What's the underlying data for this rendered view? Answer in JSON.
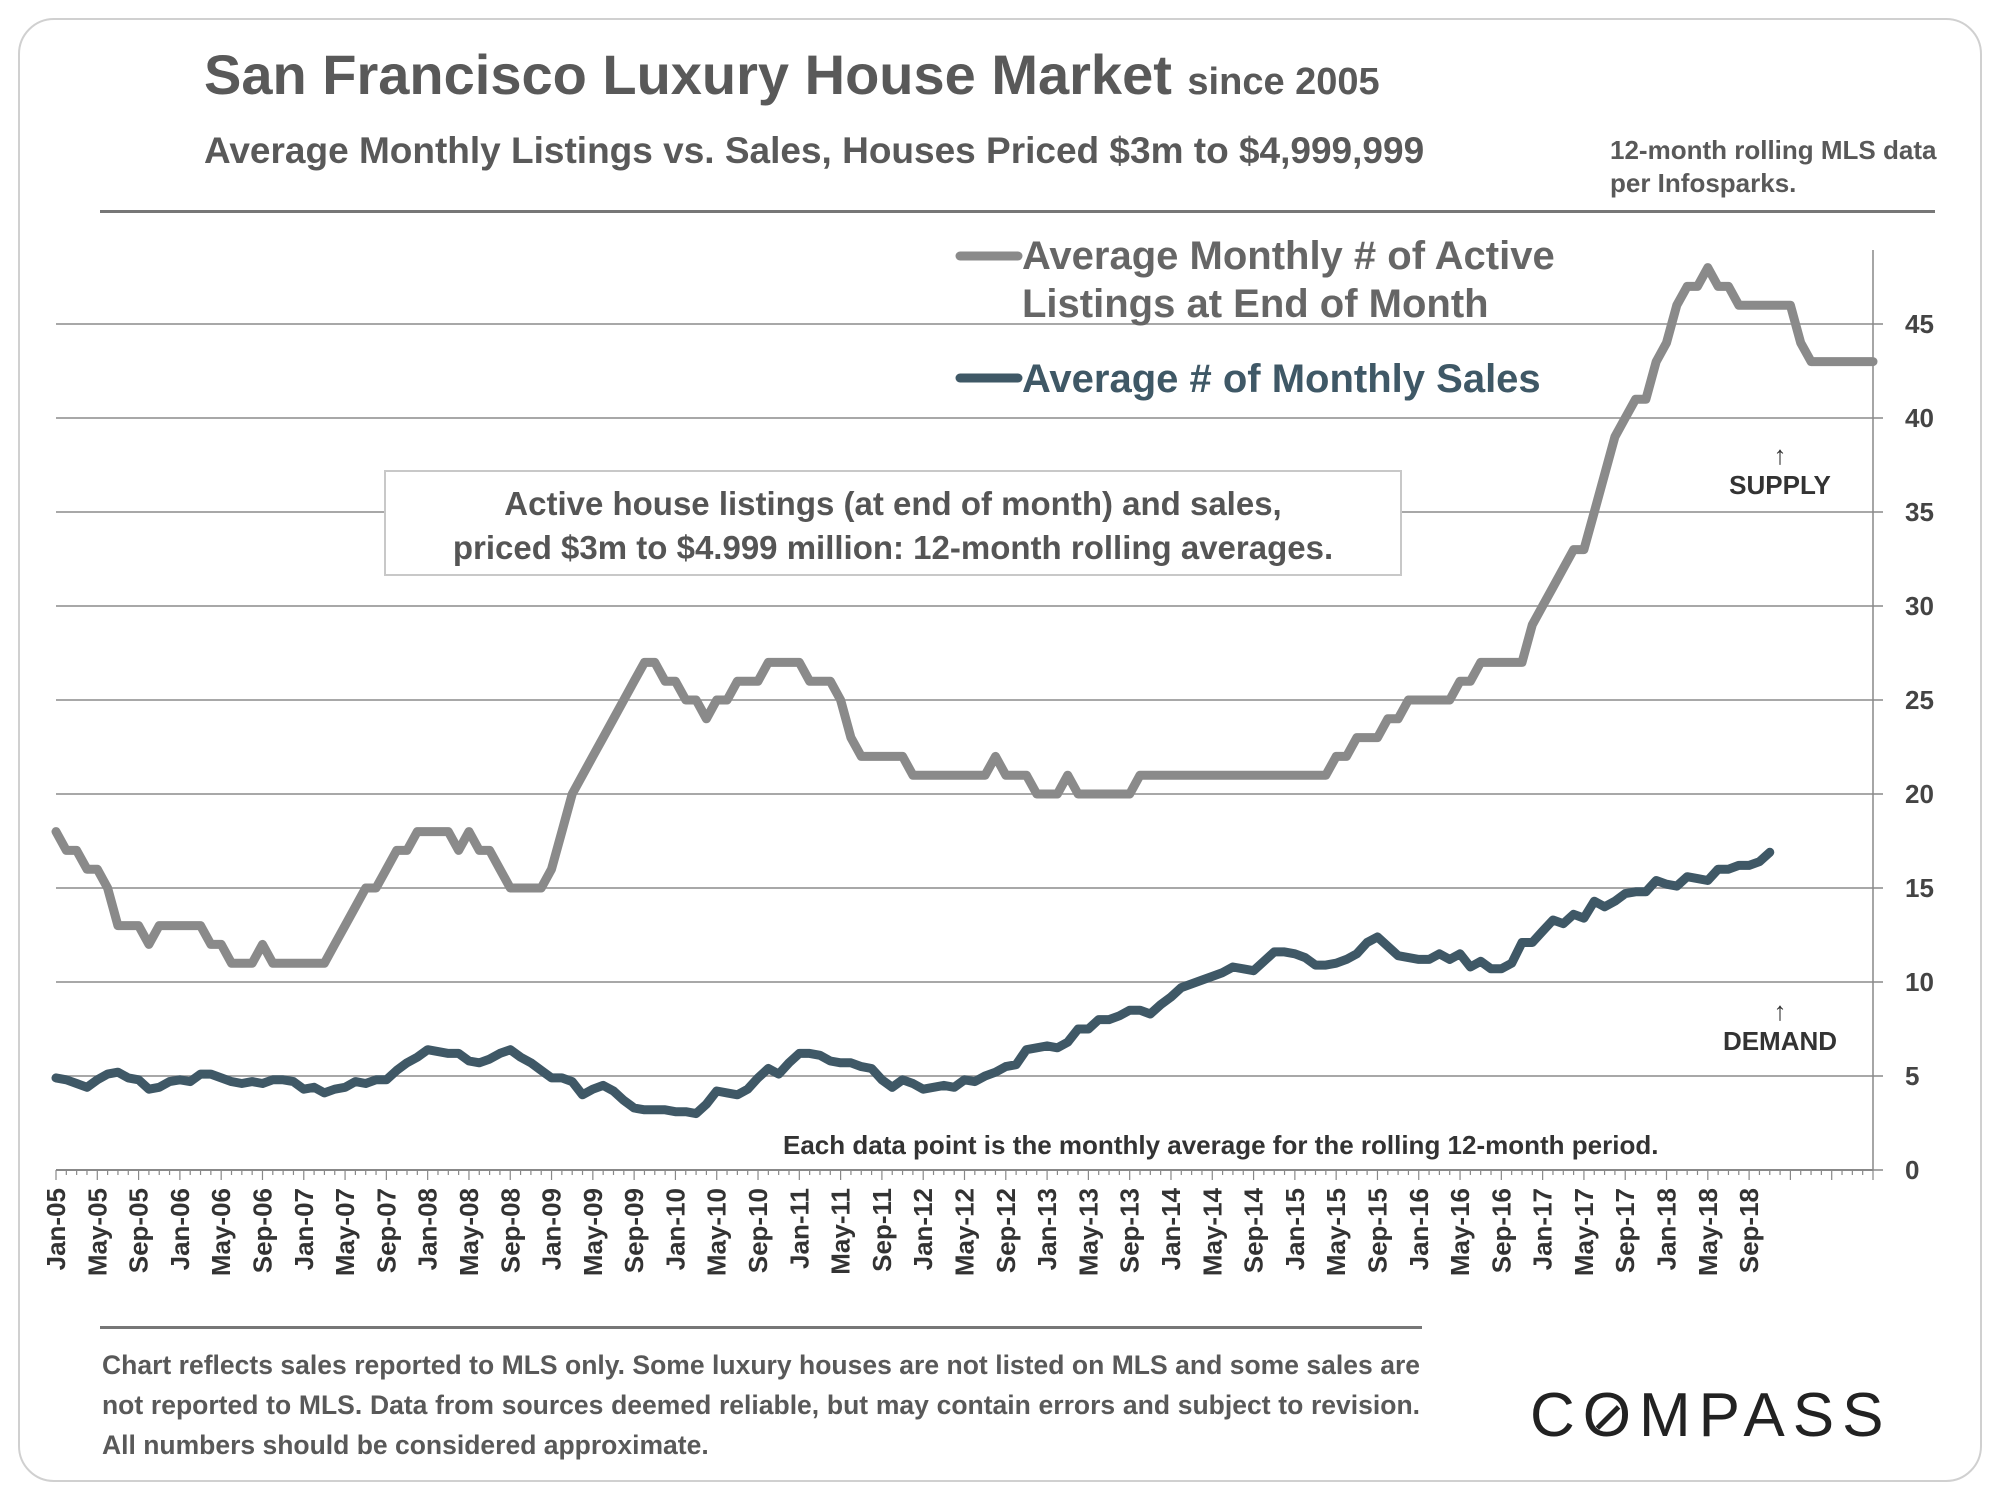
{
  "header": {
    "title": "San Francisco Luxury House Market",
    "title_suffix": "since 2005",
    "subtitle": "Average Monthly Listings vs. Sales, Houses Priced $3m to $4,999,999",
    "source_note": "12-month rolling MLS data per Infosparks."
  },
  "annotations": {
    "box_line1": "Active house listings (at end of month) and sales,",
    "box_line2": "priced $3m to $4.999 million: 12-month rolling averages.",
    "supply_arrow": "↑",
    "supply_label": "SUPPLY",
    "demand_arrow": "↑",
    "demand_label": "DEMAND",
    "data_point_note": "Each data point is the monthly average for the rolling 12-month period."
  },
  "footer": {
    "disclaimer": "Chart reflects sales reported to MLS only. Some luxury houses are not listed on MLS and some sales are not reported to MLS. Data from sources deemed reliable, but may contain errors and subject to revision. All numbers should be considered approximate.",
    "logo": "COMPASS"
  },
  "colors": {
    "listings": "#8a8a8a",
    "sales": "#3f5866",
    "grid": "#8c8c8c",
    "text": "#595959"
  },
  "chart_data": {
    "type": "line",
    "title": "San Francisco Luxury House Market since 2005",
    "xlabel": "",
    "ylabel": "",
    "ylim": [
      0,
      48
    ],
    "yticks": [
      0,
      5,
      10,
      15,
      20,
      25,
      30,
      35,
      40,
      45
    ],
    "grid": true,
    "y_axis_side": "right",
    "x_start": "Jan-05",
    "x_end": "Nov-18",
    "x_tick_labels": [
      "Jan-05",
      "May-05",
      "Sep-05",
      "Jan-06",
      "May-06",
      "Sep-06",
      "Jan-07",
      "May-07",
      "Sep-07",
      "Jan-08",
      "May-08",
      "Sep-08",
      "Jan-09",
      "May-09",
      "Sep-09",
      "Jan-10",
      "May-10",
      "Sep-10",
      "Jan-11",
      "May-11",
      "Sep-11",
      "Jan-12",
      "May-12",
      "Sep-12",
      "Jan-13",
      "May-13",
      "Sep-13",
      "Jan-14",
      "May-14",
      "Sep-14",
      "Jan-15",
      "May-15",
      "Sep-15",
      "Jan-16",
      "May-16",
      "Sep-16",
      "Jan-17",
      "May-17",
      "Sep-17",
      "Jan-18",
      "May-18",
      "Sep-18"
    ],
    "series": [
      {
        "name": "Average Monthly # of Active Listings at End of Month",
        "legend_line1": "Average Monthly # of Active",
        "legend_line2": "Listings at End of Month",
        "values": [
          18,
          17,
          17,
          16,
          16,
          15,
          13,
          13,
          13,
          12,
          13,
          13,
          13,
          13,
          13,
          12,
          12,
          11,
          11,
          11,
          12,
          11,
          11,
          11,
          11,
          11,
          11,
          12,
          13,
          14,
          15,
          15,
          16,
          17,
          17,
          18,
          18,
          18,
          18,
          17,
          18,
          17,
          17,
          16,
          15,
          15,
          15,
          15,
          16,
          18,
          20,
          21,
          22,
          23,
          24,
          25,
          26,
          27,
          27,
          26,
          26,
          25,
          25,
          24,
          25,
          25,
          26,
          26,
          26,
          27,
          27,
          27,
          27,
          26,
          26,
          26,
          25,
          23,
          22,
          22,
          22,
          22,
          22,
          21,
          21,
          21,
          21,
          21,
          21,
          21,
          21,
          22,
          21,
          21,
          21,
          20,
          20,
          20,
          21,
          20,
          20,
          20,
          20,
          20,
          20,
          21,
          21,
          21,
          21,
          21,
          21,
          21,
          21,
          21,
          21,
          21,
          21,
          21,
          21,
          21,
          21,
          21,
          21,
          21,
          22,
          22,
          23,
          23,
          23,
          24,
          24,
          25,
          25,
          25,
          25,
          25,
          26,
          26,
          27,
          27,
          27,
          27,
          27,
          29,
          30,
          31,
          32,
          33,
          33,
          35,
          37,
          39,
          40,
          41,
          41,
          43,
          44,
          46,
          47,
          47,
          48,
          47,
          47,
          46,
          46,
          46,
          46,
          46,
          46,
          44,
          43,
          43,
          43,
          43,
          43,
          43,
          43
        ]
      },
      {
        "name": "Average # of Monthly Sales",
        "legend_line1": "Average # of Monthly Sales",
        "values": [
          4.9,
          4.8,
          4.6,
          4.4,
          4.8,
          5.1,
          5.2,
          4.9,
          4.8,
          4.3,
          4.4,
          4.7,
          4.8,
          4.7,
          5.1,
          5.1,
          4.9,
          4.7,
          4.6,
          4.7,
          4.6,
          4.8,
          4.8,
          4.7,
          4.3,
          4.4,
          4.1,
          4.3,
          4.4,
          4.7,
          4.6,
          4.8,
          4.8,
          5.3,
          5.7,
          6.0,
          6.4,
          6.3,
          6.2,
          6.2,
          5.8,
          5.7,
          5.9,
          6.2,
          6.4,
          6.0,
          5.7,
          5.3,
          4.9,
          4.9,
          4.7,
          4.0,
          4.3,
          4.5,
          4.2,
          3.7,
          3.3,
          3.2,
          3.2,
          3.2,
          3.1,
          3.1,
          3.0,
          3.5,
          4.2,
          4.1,
          4.0,
          4.3,
          4.9,
          5.4,
          5.1,
          5.7,
          6.2,
          6.2,
          6.1,
          5.8,
          5.7,
          5.7,
          5.5,
          5.4,
          4.8,
          4.4,
          4.8,
          4.6,
          4.3,
          4.4,
          4.5,
          4.4,
          4.8,
          4.7,
          5.0,
          5.2,
          5.5,
          5.6,
          6.4,
          6.5,
          6.6,
          6.5,
          6.8,
          7.5,
          7.5,
          8.0,
          8.0,
          8.2,
          8.5,
          8.5,
          8.3,
          8.8,
          9.2,
          9.7,
          9.9,
          10.1,
          10.3,
          10.5,
          10.8,
          10.7,
          10.6,
          11.1,
          11.6,
          11.6,
          11.5,
          11.3,
          10.9,
          10.9,
          11.0,
          11.2,
          11.5,
          12.1,
          12.4,
          11.9,
          11.4,
          11.3,
          11.2,
          11.2,
          11.5,
          11.2,
          11.5,
          10.8,
          11.1,
          10.7,
          10.7,
          11.0,
          12.1,
          12.1,
          12.7,
          13.3,
          13.1,
          13.6,
          13.4,
          14.3,
          14.0,
          14.3,
          14.7,
          14.8,
          14.8,
          15.4,
          15.2,
          15.1,
          15.6,
          15.5,
          15.4,
          16.0,
          16.0,
          16.2,
          16.2,
          16.4,
          16.9
        ]
      }
    ]
  }
}
